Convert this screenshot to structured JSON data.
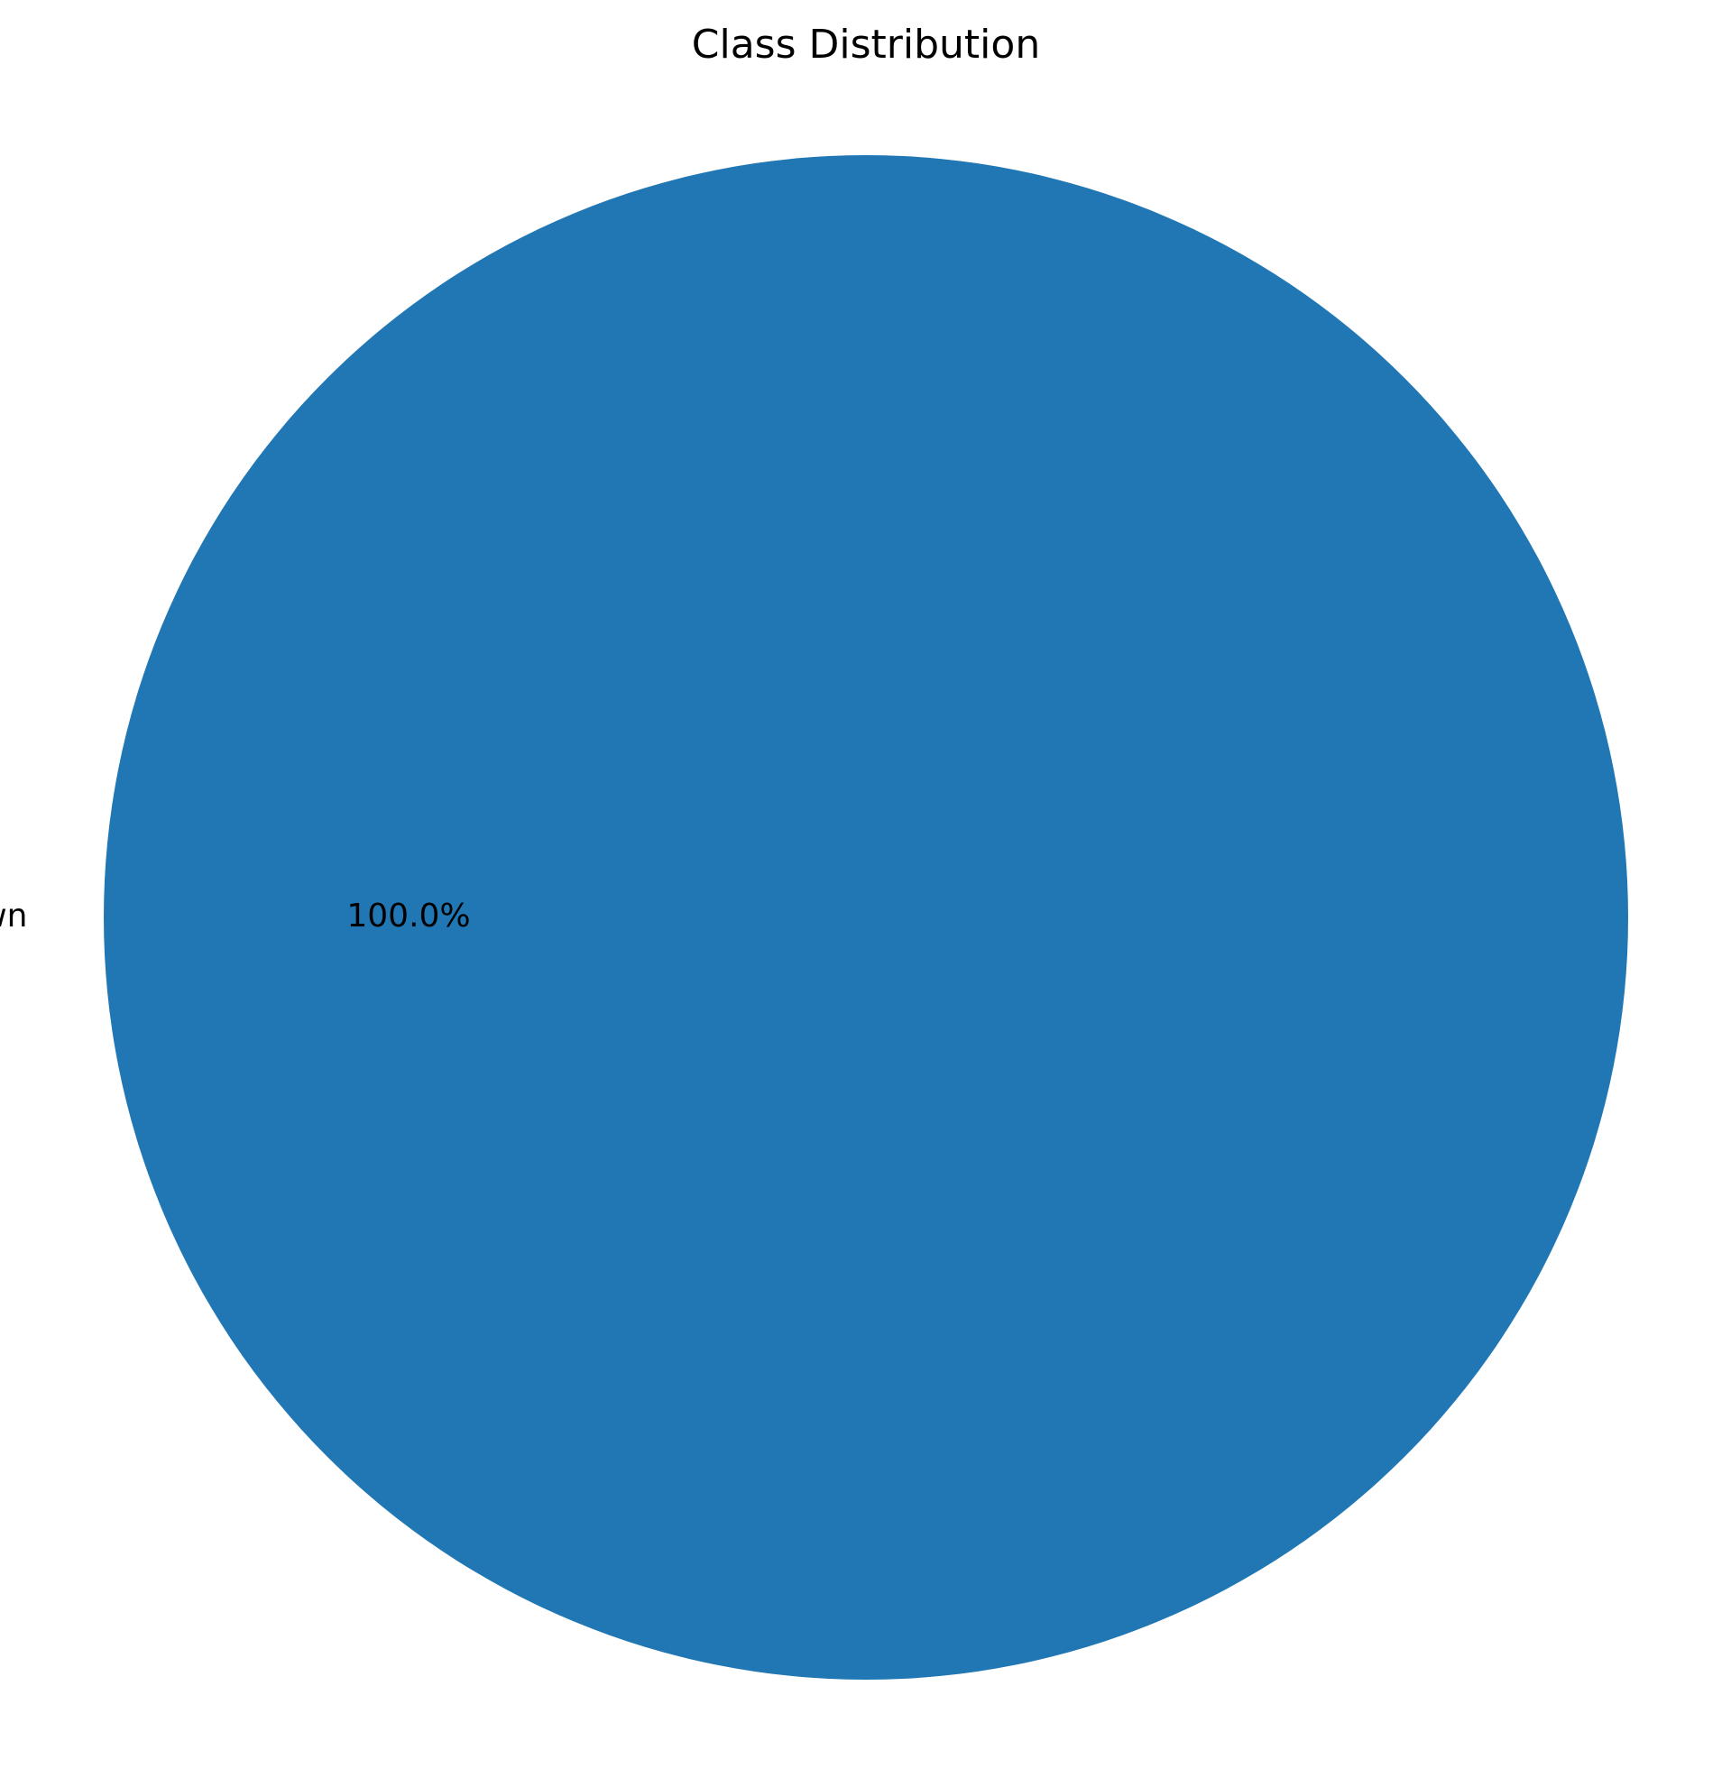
{
  "chart_data": {
    "type": "pie",
    "title": "Class Distribution",
    "slices": [
      {
        "label": "Unknown",
        "value": 100.0,
        "pct_label": "100.0%",
        "color": "#2077b4"
      }
    ]
  }
}
